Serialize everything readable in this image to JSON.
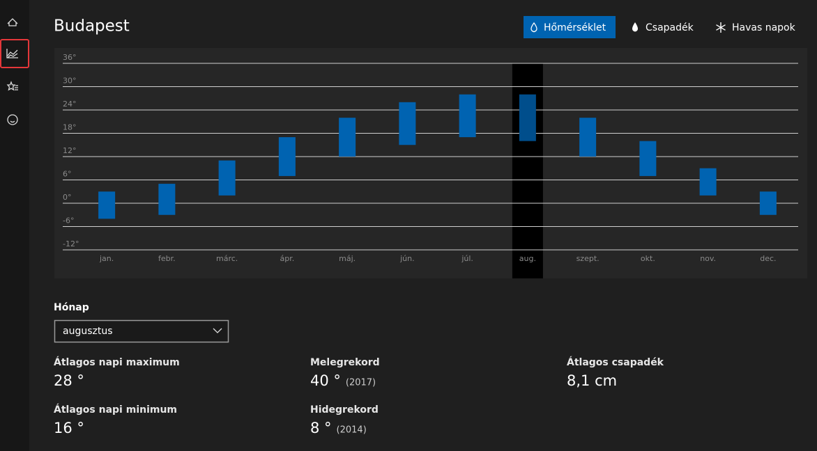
{
  "header": {
    "title": "Budapest",
    "tabs": [
      "Hőmérséklet",
      "Csapadék",
      "Havas napok"
    ],
    "active_tab": 0
  },
  "chart_data": {
    "type": "floating-bar",
    "categories": [
      "jan.",
      "febr.",
      "márc.",
      "ápr.",
      "máj.",
      "jún.",
      "júl.",
      "aug.",
      "szept.",
      "okt.",
      "nov.",
      "dec."
    ],
    "low": [
      -4,
      -3,
      2,
      7,
      12,
      15,
      17,
      16,
      12,
      7,
      2,
      -3
    ],
    "high": [
      3,
      5,
      11,
      17,
      22,
      26,
      28,
      28,
      22,
      16,
      9,
      3
    ],
    "color": "#0063b1",
    "highlight_color": "#004e8c",
    "highlight_index": 7,
    "ylim": [
      -12,
      36
    ],
    "yticks": [
      {
        "value": -12,
        "label": "-12°"
      },
      {
        "value": -6,
        "label": "-6°"
      },
      {
        "value": 0,
        "label": "0°"
      },
      {
        "value": 6,
        "label": "6°"
      },
      {
        "value": 12,
        "label": "12°"
      },
      {
        "value": 18,
        "label": "18°"
      },
      {
        "value": 24,
        "label": "24°"
      },
      {
        "value": 30,
        "label": "30°"
      },
      {
        "value": 36,
        "label": "36°"
      }
    ],
    "grid": true
  },
  "month_picker": {
    "label": "Hónap",
    "value": "augusztus"
  },
  "stats": [
    {
      "label": "Átlagos napi maximum",
      "value": "28 °"
    },
    {
      "label": "Átlagos napi minimum",
      "value": "16 °"
    },
    {
      "label": "Melegrekord",
      "value": "40 °",
      "note": "(2017)"
    },
    {
      "label": "Hidegrekord",
      "value": "8 °",
      "note": "(2014)"
    },
    {
      "label": "Átlagos csapadék",
      "value": "8,1 cm"
    }
  ]
}
